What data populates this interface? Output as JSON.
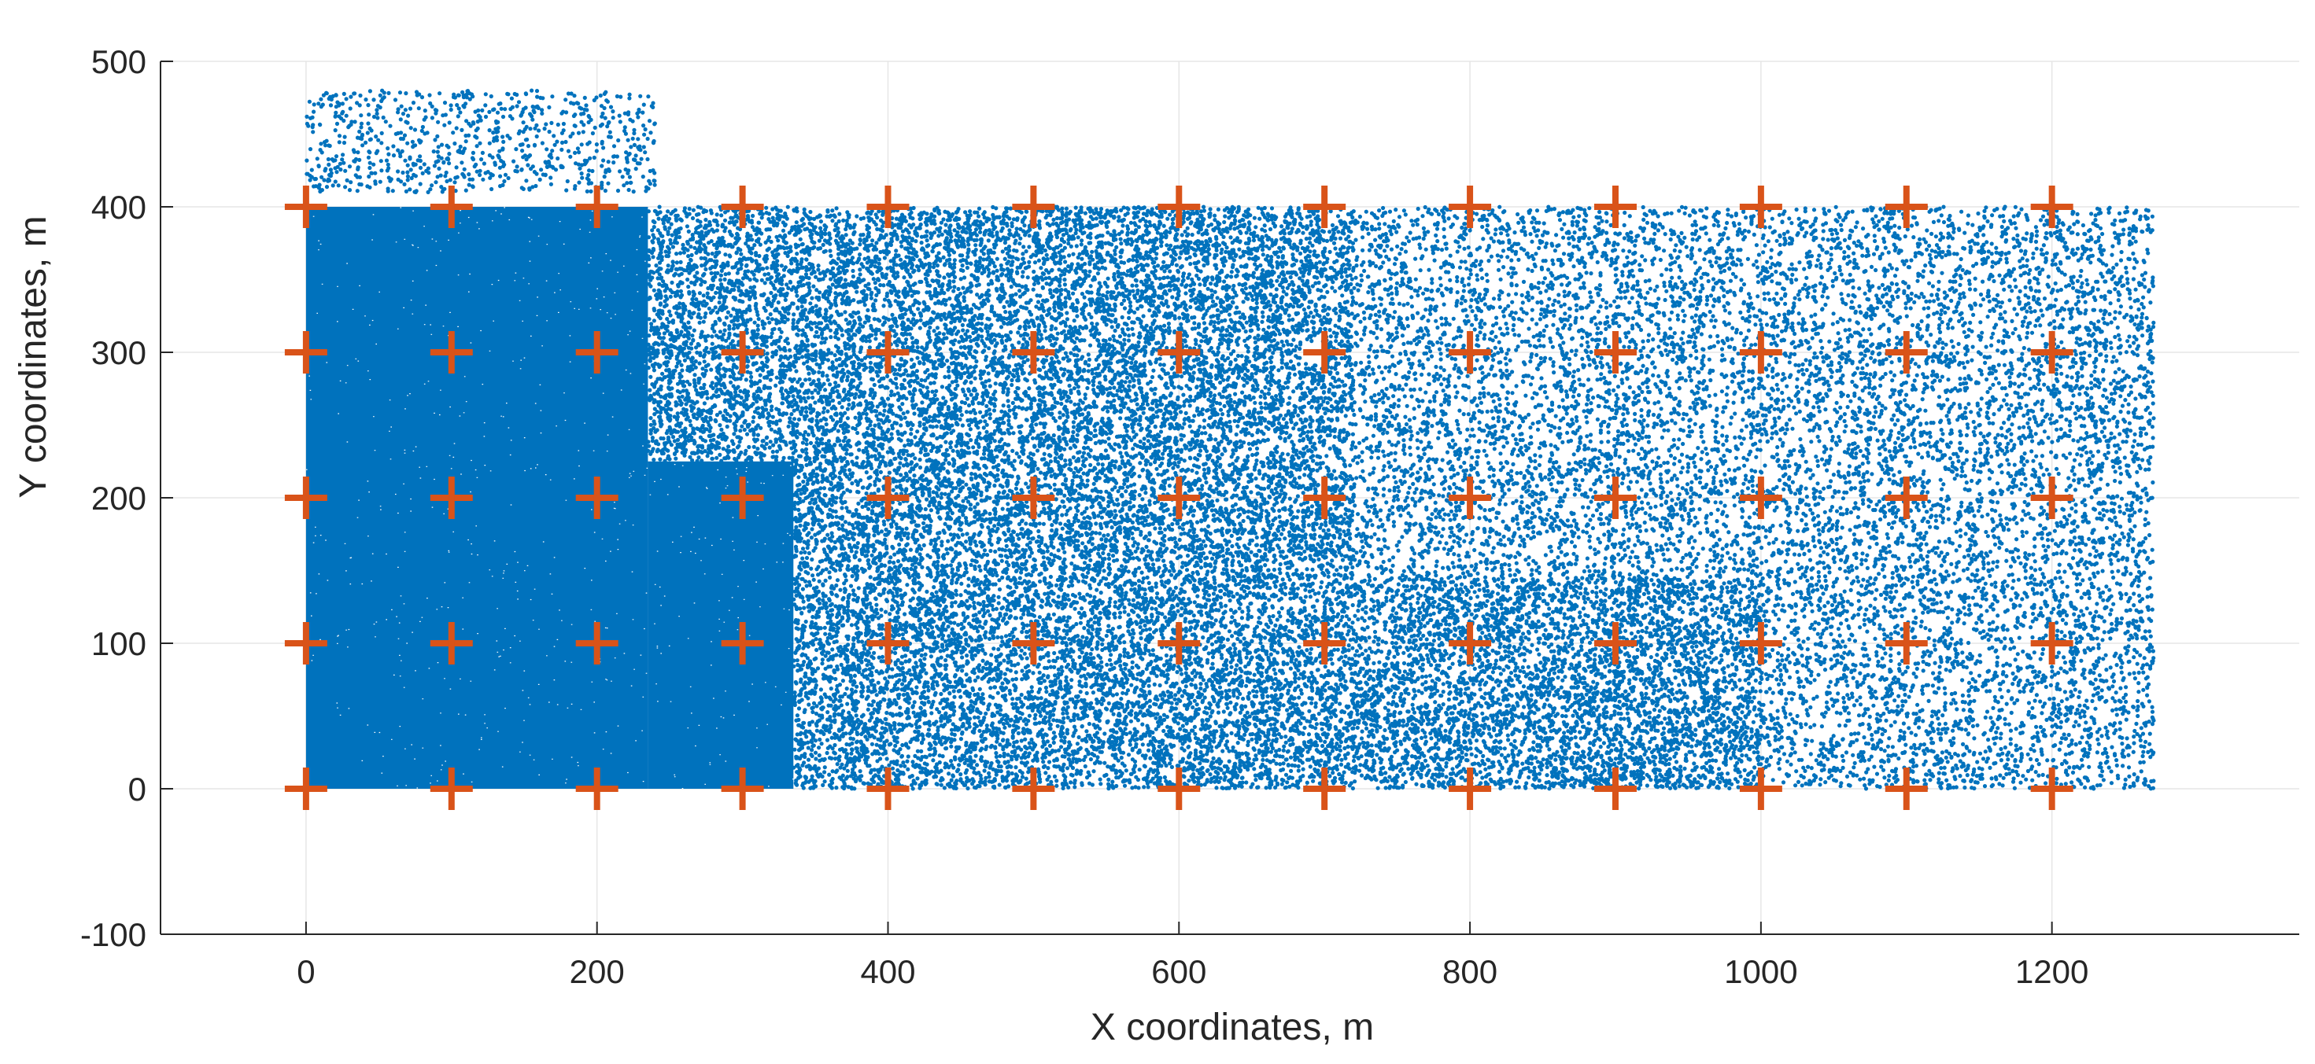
{
  "chart_data": {
    "type": "scatter",
    "title": "",
    "xlabel": "X coordinates, m",
    "ylabel": "Y coordinates, m",
    "xlim": [
      -100,
      1370
    ],
    "ylim": [
      -100,
      500
    ],
    "xticks": [
      0,
      200,
      400,
      600,
      800,
      1000,
      1200
    ],
    "yticks": [
      -100,
      0,
      100,
      200,
      300,
      400,
      500
    ],
    "grid": true,
    "legend": "none",
    "series": [
      {
        "marker": "dot",
        "color": "#0072BD",
        "regions": [
          {
            "x": [
              0,
              235
            ],
            "y": [
              0,
              400
            ],
            "density": "very high"
          },
          {
            "x": [
              235,
              335
            ],
            "y": [
              0,
              225
            ],
            "density": "very high"
          },
          {
            "x": [
              235,
              335
            ],
            "y": [
              225,
              400
            ],
            "density": "high"
          },
          {
            "x": [
              335,
              720
            ],
            "y": [
              0,
              400
            ],
            "density": "high"
          },
          {
            "x": [
              720,
              1000
            ],
            "y": [
              0,
              145
            ],
            "density": "high"
          },
          {
            "x": [
              720,
              1270
            ],
            "y": [
              145,
              400
            ],
            "density": "medium"
          },
          {
            "x": [
              1000,
              1270
            ],
            "y": [
              0,
              145
            ],
            "density": "medium"
          },
          {
            "x": [
              0,
              240
            ],
            "y": [
              410,
              480
            ],
            "density": "low"
          }
        ]
      },
      {
        "marker": "plus",
        "color": "#D95319",
        "points": [
          [
            0,
            0
          ],
          [
            100,
            0
          ],
          [
            200,
            0
          ],
          [
            300,
            0
          ],
          [
            400,
            0
          ],
          [
            500,
            0
          ],
          [
            600,
            0
          ],
          [
            700,
            0
          ],
          [
            800,
            0
          ],
          [
            900,
            0
          ],
          [
            1000,
            0
          ],
          [
            1100,
            0
          ],
          [
            1200,
            0
          ],
          [
            0,
            100
          ],
          [
            100,
            100
          ],
          [
            200,
            100
          ],
          [
            300,
            100
          ],
          [
            400,
            100
          ],
          [
            500,
            100
          ],
          [
            600,
            100
          ],
          [
            700,
            100
          ],
          [
            800,
            100
          ],
          [
            900,
            100
          ],
          [
            1000,
            100
          ],
          [
            1100,
            100
          ],
          [
            1200,
            100
          ],
          [
            0,
            200
          ],
          [
            100,
            200
          ],
          [
            200,
            200
          ],
          [
            300,
            200
          ],
          [
            400,
            200
          ],
          [
            500,
            200
          ],
          [
            600,
            200
          ],
          [
            700,
            200
          ],
          [
            800,
            200
          ],
          [
            900,
            200
          ],
          [
            1000,
            200
          ],
          [
            1100,
            200
          ],
          [
            1200,
            200
          ],
          [
            0,
            300
          ],
          [
            100,
            300
          ],
          [
            200,
            300
          ],
          [
            300,
            300
          ],
          [
            400,
            300
          ],
          [
            500,
            300
          ],
          [
            600,
            300
          ],
          [
            700,
            300
          ],
          [
            800,
            300
          ],
          [
            900,
            300
          ],
          [
            1000,
            300
          ],
          [
            1100,
            300
          ],
          [
            1200,
            300
          ],
          [
            0,
            400
          ],
          [
            100,
            400
          ],
          [
            200,
            400
          ],
          [
            300,
            400
          ],
          [
            400,
            400
          ],
          [
            500,
            400
          ],
          [
            600,
            400
          ],
          [
            700,
            400
          ],
          [
            800,
            400
          ],
          [
            900,
            400
          ],
          [
            1000,
            400
          ],
          [
            1100,
            400
          ],
          [
            1200,
            400
          ]
        ]
      }
    ]
  }
}
